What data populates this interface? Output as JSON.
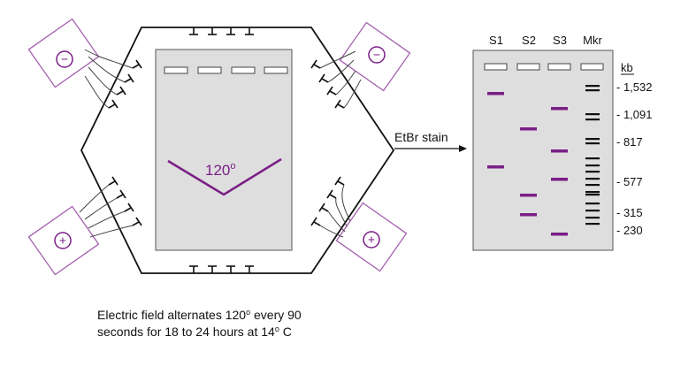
{
  "chamber": {
    "angle_label": "120",
    "angle_unit": "o",
    "negative_symbol": "−",
    "positive_symbol": "+"
  },
  "stain": {
    "label": "EtBr stain"
  },
  "gel": {
    "lane_labels": [
      "S1",
      "S2",
      "S3",
      "Mkr"
    ],
    "unit_label": "kb",
    "size_labels": [
      "- 1,532",
      "- 1,091",
      "- 817",
      "- 577",
      "- 315",
      "- 230"
    ]
  },
  "caption": {
    "line1_pre": "Electric field alternates 120",
    "line1_sup": "o",
    "line1_post": " every 90",
    "line2_pre": "seconds for 18 to 24 hours at 14",
    "line2_sup": "o",
    "line2_post": " C"
  },
  "colors": {
    "band": "#7a1f86",
    "gel": "#dedede",
    "electrode": "#a35fae",
    "outline": "#111111"
  }
}
